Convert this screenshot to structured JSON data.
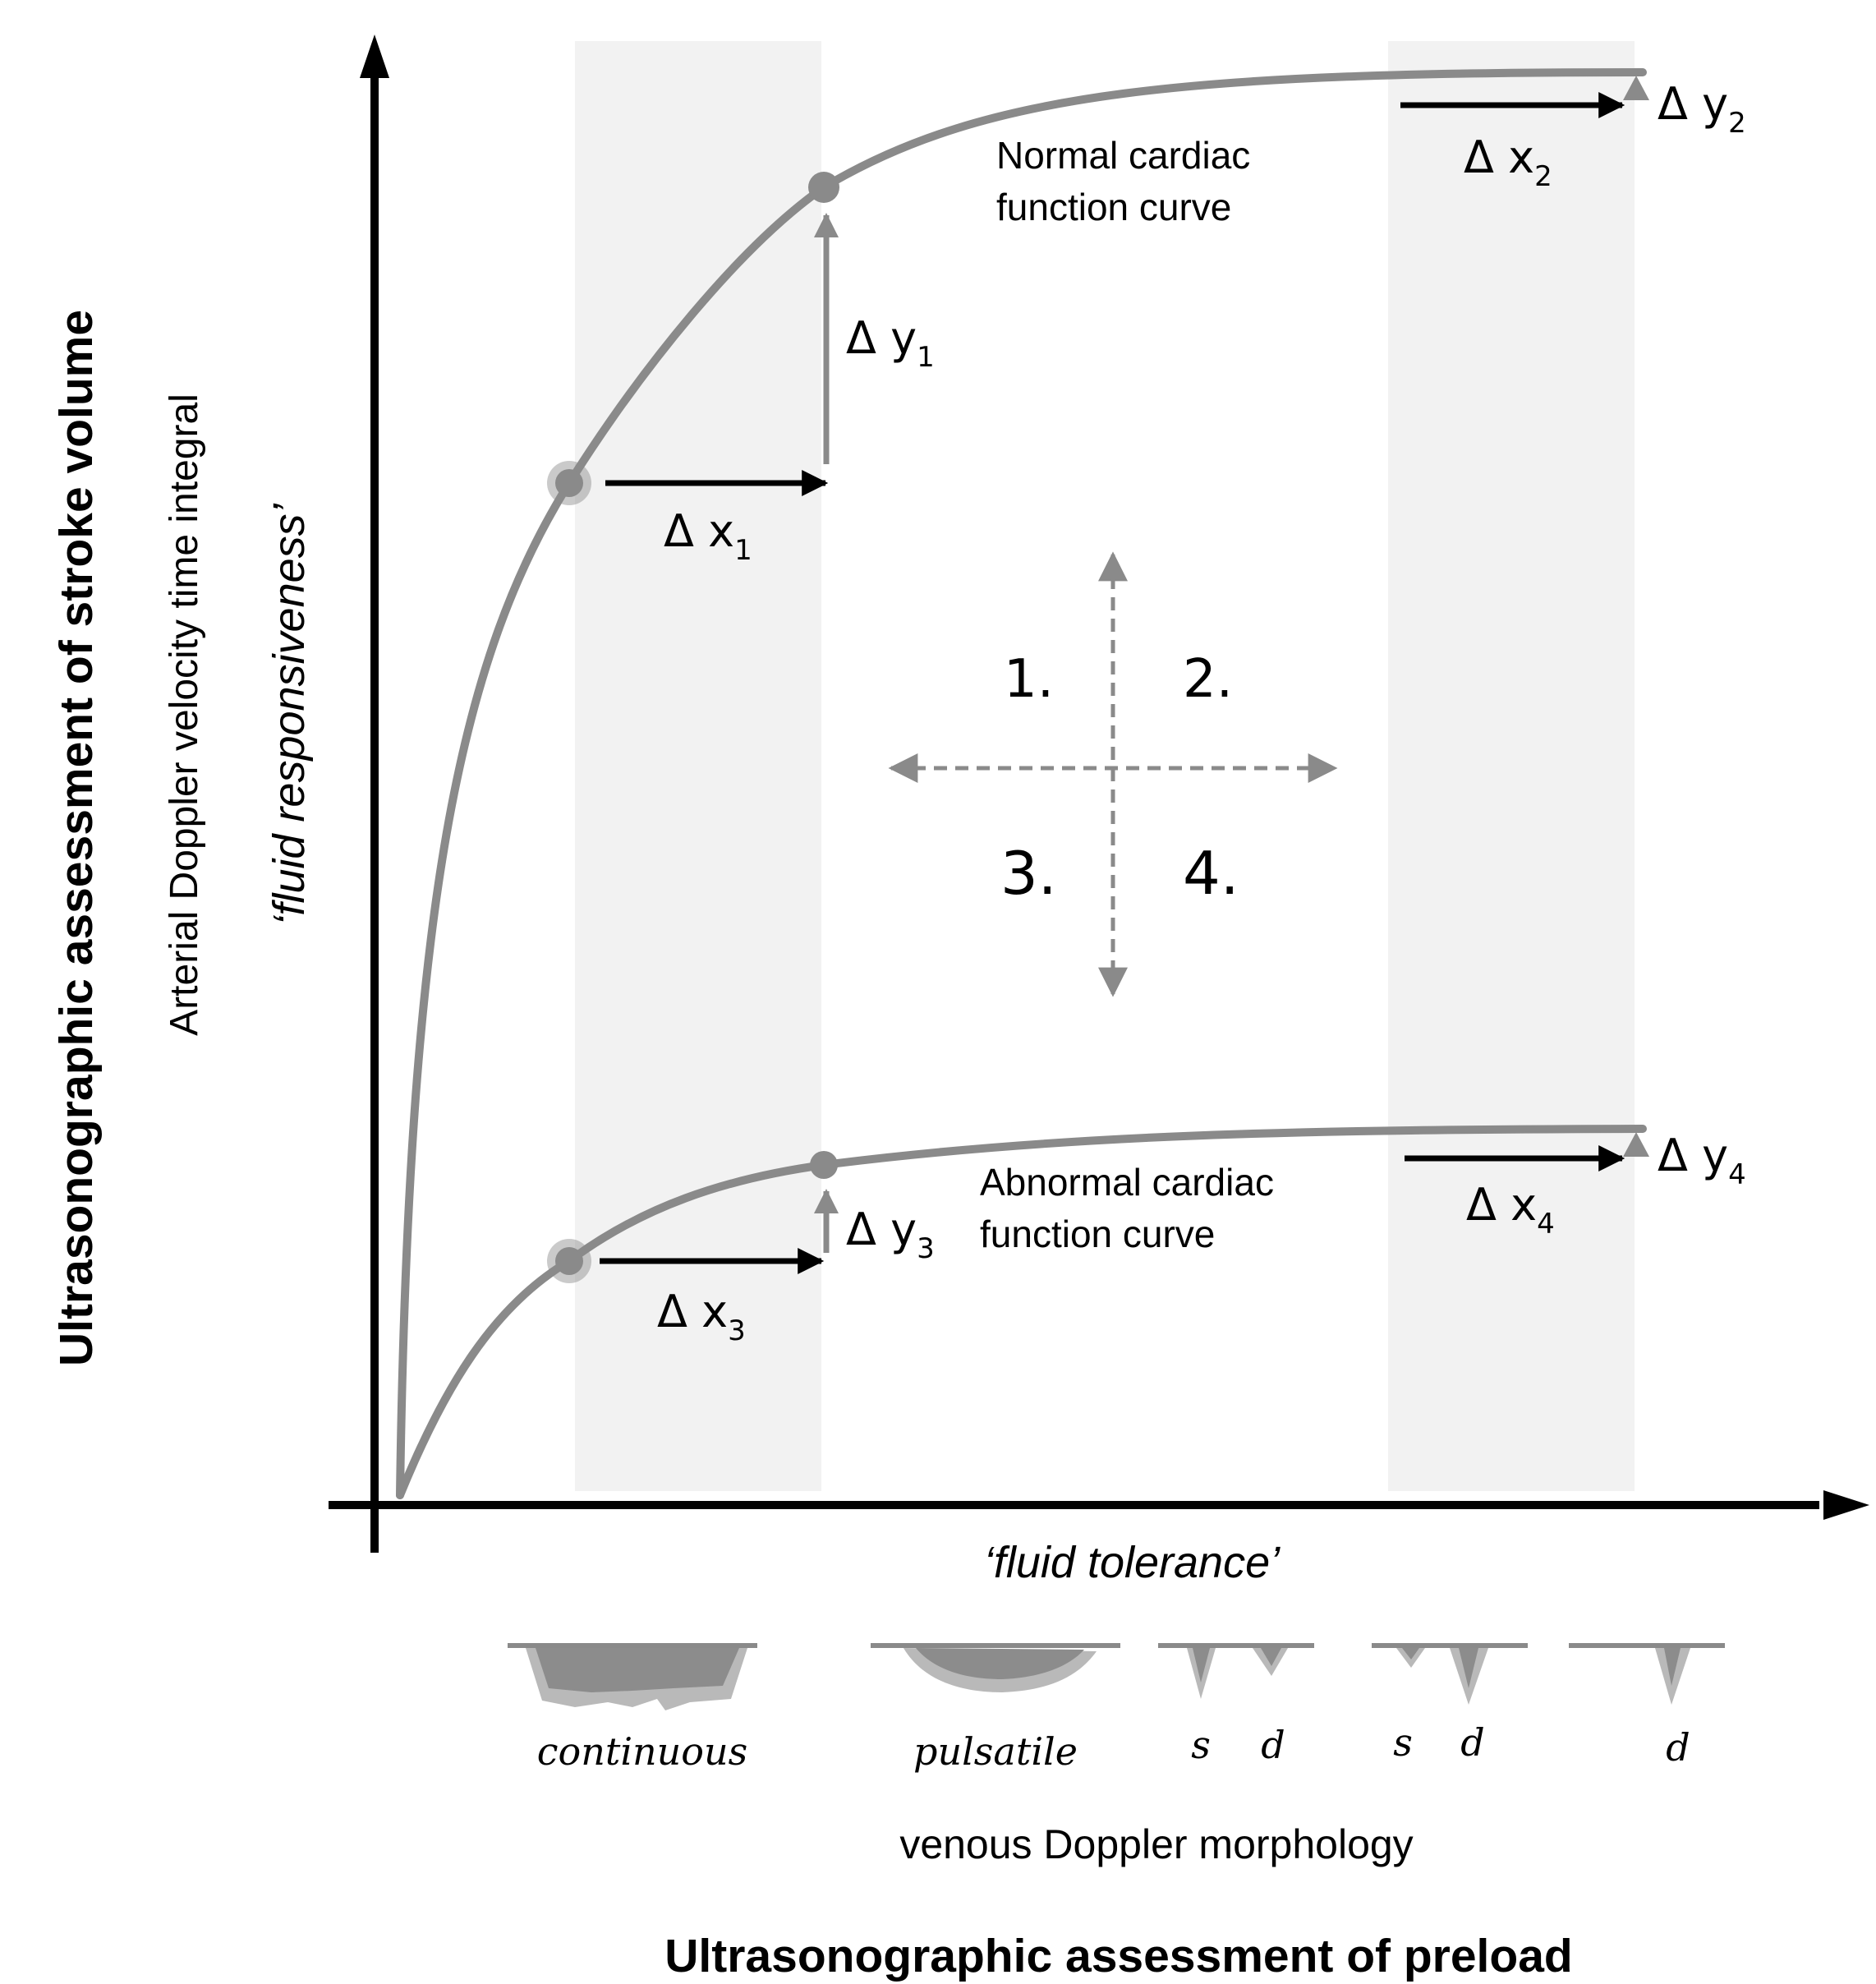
{
  "colors": {
    "curve": "#8a8a8a",
    "axis": "#000000",
    "band": "#f2f2f2",
    "arrow_black": "#000000",
    "arrow_grey": "#8a8a8a",
    "text": "#000000",
    "doppler_dark": "#8c8c8c",
    "doppler_light": "#b9b9b9"
  },
  "y_axis": {
    "title": "Ultrasonographic assessment of stroke volume",
    "subtitle": "Arterial Doppler velocity time integral",
    "concept": "‘fluid responsiveness’"
  },
  "x_axis": {
    "title": "Ultrasonographic assessment of preload",
    "subtitle": "venous Doppler morphology",
    "concept": "‘fluid tolerance’"
  },
  "curves": {
    "normal": {
      "label_line1": "Normal cardiac",
      "label_line2": "function curve"
    },
    "abnormal": {
      "label_line1": "Abnormal cardiac",
      "label_line2": "function curve"
    }
  },
  "deltas": {
    "dx1": {
      "symbol": "Δ x",
      "sub": "1"
    },
    "dy1": {
      "symbol": "Δ y",
      "sub": "1"
    },
    "dx2": {
      "symbol": "Δ x",
      "sub": "2"
    },
    "dy2": {
      "symbol": "Δ y",
      "sub": "2"
    },
    "dx3": {
      "symbol": "Δ x",
      "sub": "3"
    },
    "dy3": {
      "symbol": "Δ y",
      "sub": "3"
    },
    "dx4": {
      "symbol": "Δ x",
      "sub": "4"
    },
    "dy4": {
      "symbol": "Δ y",
      "sub": "4"
    }
  },
  "quadrants": [
    "1.",
    "2.",
    "3.",
    "4."
  ],
  "doppler_patterns": {
    "continuous": "continuous",
    "pulsatile": "pulsatile",
    "s": "s",
    "d": "d"
  }
}
